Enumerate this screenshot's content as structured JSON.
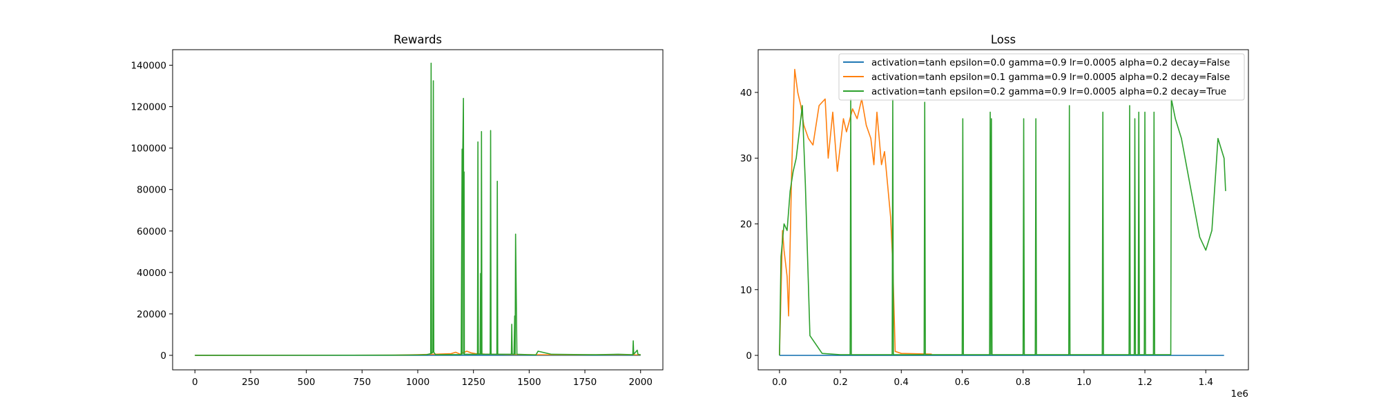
{
  "chart_data": [
    {
      "type": "line",
      "title": "Rewards",
      "xlabel": "",
      "ylabel": "",
      "xlim": [
        -100,
        2100
      ],
      "ylim": [
        -7000,
        147500
      ],
      "xticks": [
        0,
        250,
        500,
        750,
        1000,
        1250,
        1500,
        1750,
        2000
      ],
      "xtick_labels": [
        "0",
        "250",
        "500",
        "750",
        "1000",
        "1250",
        "1500",
        "1750",
        "2000"
      ],
      "yticks": [
        0,
        20000,
        40000,
        60000,
        80000,
        100000,
        120000,
        140000
      ],
      "ytick_labels": [
        "0",
        "20000",
        "40000",
        "60000",
        "80000",
        "100000",
        "120000",
        "140000"
      ],
      "grid": false,
      "series": [
        {
          "color": "#1f77b4",
          "x": [
            0,
            500,
            1000,
            1500,
            2000
          ],
          "y": [
            0,
            0,
            0,
            0,
            0
          ]
        },
        {
          "color": "#ff7f0e",
          "x": [
            0,
            900,
            1000,
            1150,
            1170,
            1190,
            1220,
            1240,
            1260,
            1300,
            1400,
            1500,
            1700,
            1900,
            2000
          ],
          "y": [
            0,
            100,
            300,
            800,
            1500,
            600,
            2000,
            1200,
            800,
            600,
            400,
            300,
            200,
            300,
            200
          ]
        },
        {
          "color": "#2ca02c",
          "x": [
            0,
            880,
            1000,
            1040,
            1058,
            1060,
            1062,
            1068,
            1070,
            1072,
            1080,
            1195,
            1199,
            1200,
            1201,
            1205,
            1207,
            1208,
            1209,
            1215,
            1268,
            1270,
            1272,
            1280,
            1282,
            1284,
            1286,
            1288,
            1290,
            1325,
            1327,
            1329,
            1355,
            1357,
            1359,
            1420,
            1422,
            1424,
            1432,
            1435,
            1437,
            1439,
            1445,
            1530,
            1540,
            1600,
            1700,
            1800,
            1900,
            1965,
            1967,
            1969,
            1985,
            1988,
            2000
          ],
          "y": [
            0,
            100,
            200,
            300,
            800,
            141000,
            1000,
            1500,
            132500,
            1500,
            300,
            400,
            99500,
            500,
            89500,
            124000,
            500,
            88500,
            500,
            500,
            500,
            103000,
            500,
            500,
            39500,
            500,
            108000,
            500,
            500,
            500,
            108500,
            500,
            500,
            84000,
            500,
            500,
            15000,
            500,
            500,
            19000,
            500,
            58500,
            500,
            200,
            2000,
            500,
            400,
            300,
            500,
            300,
            7000,
            500,
            2500,
            500,
            300
          ]
        }
      ]
    },
    {
      "type": "line",
      "title": "Loss",
      "xlabel": "",
      "ylabel": "",
      "xlim": [
        -70000,
        1540000
      ],
      "ylim": [
        -2.2,
        46.5
      ],
      "xticks": [
        0,
        200000,
        400000,
        600000,
        800000,
        1000000,
        1200000,
        1400000
      ],
      "xtick_labels": [
        "0.0",
        "0.2",
        "0.4",
        "0.6",
        "0.8",
        "1.0",
        "1.2",
        "1.4"
      ],
      "x_offset_label": "1e6",
      "yticks": [
        0,
        10,
        20,
        30,
        40
      ],
      "ytick_labels": [
        "0",
        "10",
        "20",
        "30",
        "40"
      ],
      "grid": false,
      "legend_position": "top-right",
      "series": [
        {
          "name": "activation=tanh epsilon=0.0 gamma=0.9 lr=0.0005 alpha=0.2 decay=False",
          "color": "#1f77b4",
          "x": [
            0,
            1460000
          ],
          "y": [
            0,
            0
          ]
        },
        {
          "name": "activation=tanh epsilon=0.1 gamma=0.9 lr=0.0005 alpha=0.2 decay=False",
          "color": "#ff7f0e",
          "x": [
            0,
            10000,
            15000,
            25000,
            30000,
            40000,
            50000,
            60000,
            70000,
            80000,
            95000,
            110000,
            130000,
            150000,
            160000,
            175000,
            190000,
            210000,
            220000,
            240000,
            255000,
            270000,
            285000,
            300000,
            310000,
            320000,
            335000,
            345000,
            355000,
            365000,
            372000,
            380000,
            400000,
            500000
          ],
          "y": [
            0,
            19,
            16,
            12,
            6,
            28,
            43.5,
            40,
            38,
            35,
            33,
            32,
            38,
            39,
            30,
            37,
            28,
            36,
            34,
            37.5,
            36,
            39,
            35,
            33,
            29,
            37,
            29,
            31,
            26,
            21,
            14,
            0.6,
            0.3,
            0.2
          ]
        },
        {
          "name": "activation=tanh epsilon=0.2 gamma=0.9 lr=0.0005 alpha=0.2 decay=True",
          "color": "#2ca02c",
          "x": [
            0,
            5000,
            15000,
            25000,
            35000,
            45000,
            55000,
            65000,
            75000,
            85000,
            100000,
            140000,
            200000,
            232000,
            234000,
            236000,
            350000,
            370000,
            372000,
            374000,
            475000,
            477000,
            479000,
            600000,
            602000,
            604000,
            690000,
            692000,
            694000,
            696000,
            698000,
            800000,
            802000,
            804000,
            840000,
            842000,
            844000,
            950000,
            952000,
            954000,
            1060000,
            1062000,
            1064000,
            1148000,
            1150000,
            1152000,
            1165000,
            1167000,
            1169000,
            1178000,
            1180000,
            1182000,
            1198000,
            1200000,
            1202000,
            1228000,
            1230000,
            1232000,
            1285000,
            1287000,
            1300000,
            1320000,
            1340000,
            1360000,
            1380000,
            1400000,
            1420000,
            1440000,
            1460000,
            1465000
          ],
          "y": [
            0,
            15,
            20,
            19,
            25,
            28,
            30,
            34,
            38,
            26,
            3,
            0.3,
            0.1,
            0.1,
            39,
            0.1,
            0.1,
            0.1,
            39,
            0.1,
            0.1,
            38.5,
            0.1,
            0.1,
            36,
            0.1,
            0.1,
            37,
            0.1,
            36,
            0.1,
            0.1,
            36,
            0.1,
            0.1,
            36,
            0.1,
            0.1,
            38,
            0.1,
            0.1,
            37,
            0.1,
            0.1,
            38,
            0.1,
            0.1,
            36,
            0.1,
            0.1,
            37,
            0.1,
            0.1,
            37,
            0.1,
            0.1,
            37,
            0.1,
            0.1,
            39,
            36,
            33,
            28,
            23,
            18,
            16,
            19,
            33,
            30,
            25
          ]
        }
      ]
    }
  ]
}
